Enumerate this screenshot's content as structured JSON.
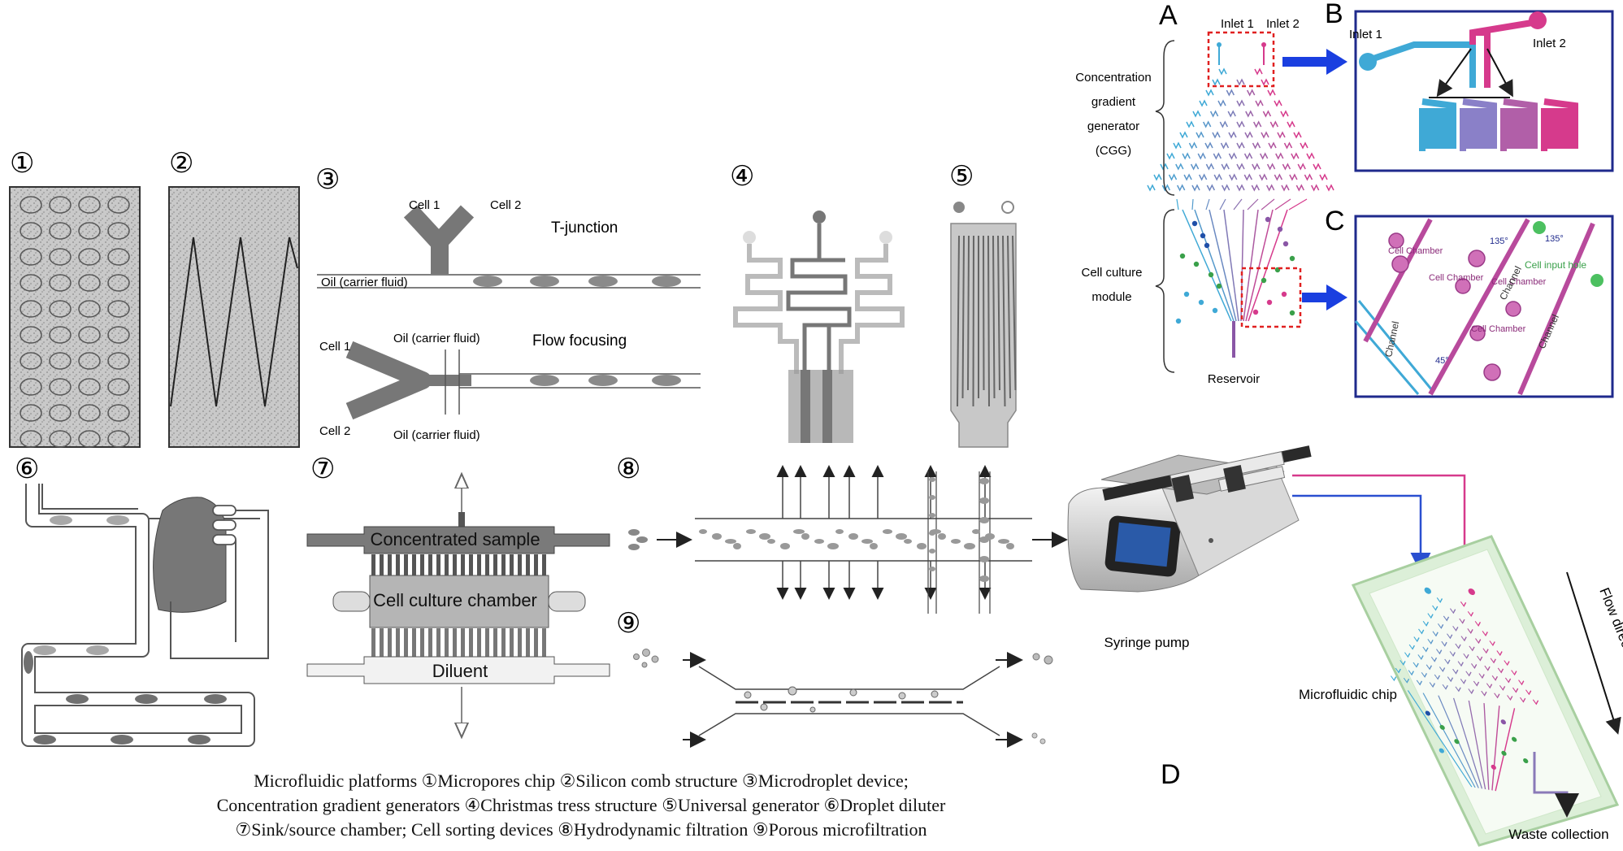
{
  "panels": {
    "p1": {
      "num": "①"
    },
    "p2": {
      "num": "②"
    },
    "p3": {
      "num": "③",
      "cell1": "Cell 1",
      "cell2": "Cell 2",
      "tjunction": "T-junction",
      "oil": "Oil (carrier fluid)",
      "cell1b": "Cell 1",
      "cell2b": "Cell 2",
      "oil_top": "Oil (carrier fluid)",
      "oil_bottom": "Oil (carrier fluid)",
      "flowfocus": "Flow focusing"
    },
    "p4": {
      "num": "④"
    },
    "p5": {
      "num": "⑤"
    },
    "p6": {
      "num": "⑥"
    },
    "p7": {
      "num": "⑦",
      "top": "Concentrated sample",
      "mid": "Cell culture chamber",
      "bottom": "Diluent"
    },
    "p8": {
      "num": "⑧"
    },
    "p9": {
      "num": "⑨"
    }
  },
  "right": {
    "A": "A",
    "B": "B",
    "C": "C",
    "D": "D",
    "inlet1": "Inlet 1",
    "inlet2": "Inlet 2",
    "cgg": [
      "Concentration",
      "gradient",
      "generator",
      "(CGG)"
    ],
    "culture": [
      "Cell culture",
      "module"
    ],
    "reservoir": "Reservoir",
    "b_inlet1": "Inlet 1",
    "b_inlet2": "Inlet 2",
    "c_chamber1": "Cell Chamber",
    "c_chamber2": "Cell Chamber",
    "c_chamber3": "Cell Chamber",
    "c_chamber4": "Cell Chamber",
    "c_channel1": "Channel",
    "c_channel2": "Channel",
    "c_channel3": "Channel",
    "c_inputhole": "Cell input hole",
    "c_a135a": "135°",
    "c_a135b": "135°",
    "c_a45": "45°",
    "syringe": "Syringe pump",
    "chip": "Microfluidic chip",
    "flow": "Flow direction",
    "waste": "Waste collection"
  },
  "caption": {
    "line1": "Microfluidic platforms ①Micropores chip ②Silicon comb structure ③Microdroplet device;",
    "line2": "Concentration gradient generators ④Christmas tress structure ⑤Universal generator ⑥Droplet diluter",
    "line3": "⑦Sink/source chamber; Cell sorting devices ⑧Hydrodynamic filtration ⑨Porous microfiltration"
  },
  "colors": {
    "cyan": "#3fa9d6",
    "magenta": "#d63a8c",
    "purple": "#8a56a6",
    "blue": "#1f2a8c",
    "green": "#3aa04a",
    "red": "#e02020"
  }
}
